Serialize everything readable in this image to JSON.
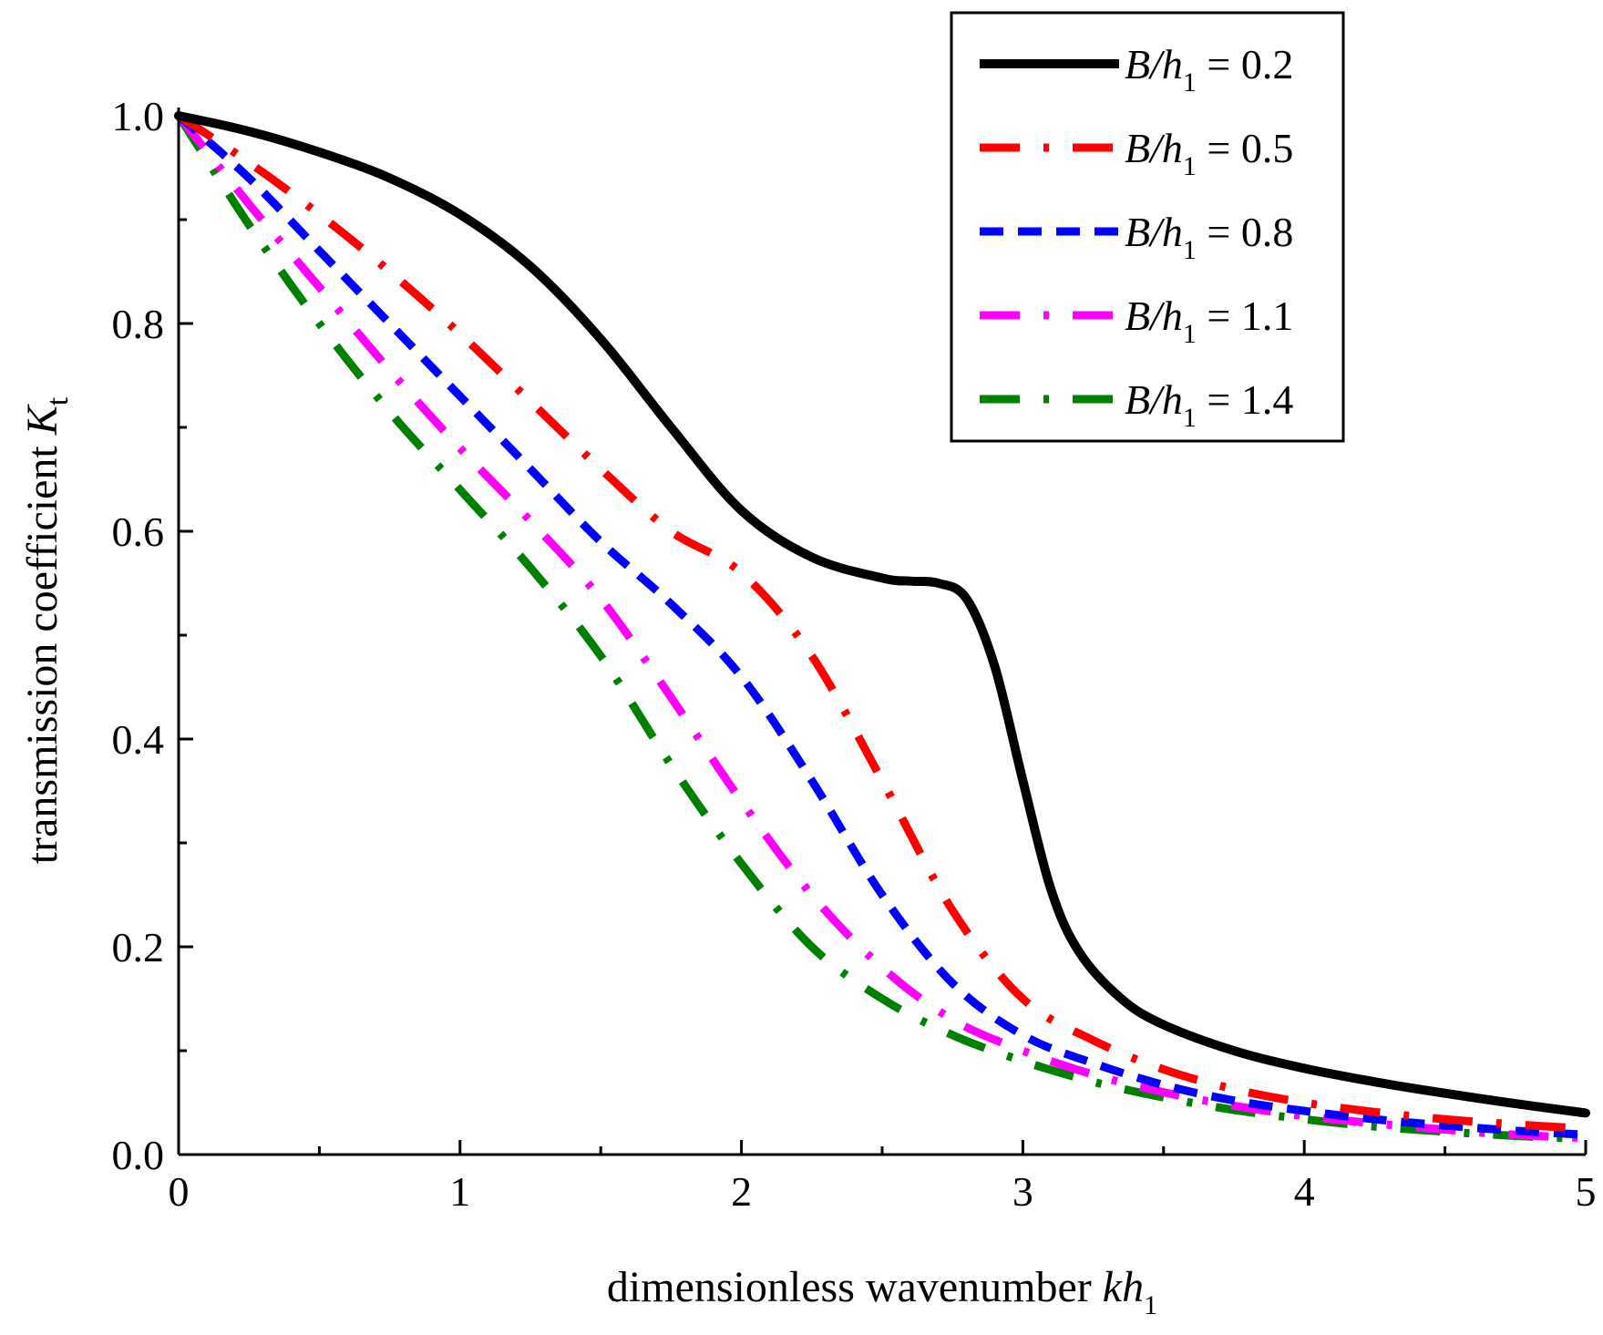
{
  "chart_data": {
    "type": "line",
    "xlabel": "dimensionless wavenumber kh",
    "xlabel_parts": {
      "main": "dimensionless wavenumber ",
      "var": "kh",
      "sub": "1"
    },
    "ylabel": "transmission coefficient K",
    "ylabel_parts": {
      "main": "transmission coefficient ",
      "var": "K",
      "sub": "t"
    },
    "xlim": [
      0,
      5
    ],
    "ylim": [
      0,
      1.0
    ],
    "x_ticks": [
      0,
      1,
      2,
      3,
      4,
      5
    ],
    "x_tick_labels": [
      "0",
      "1",
      "2",
      "3",
      "4",
      "5"
    ],
    "y_ticks": [
      0.0,
      0.2,
      0.4,
      0.6,
      0.8,
      1.0
    ],
    "y_tick_labels": [
      "0.0",
      "0.2",
      "0.4",
      "0.6",
      "0.8",
      "1.0"
    ],
    "grid": false,
    "legend_position": "top-right",
    "series": [
      {
        "name": "B/h1 = 0.2",
        "label": {
          "var": "B/h",
          "sub": "1",
          "rest": " = 0.2"
        },
        "color": "#000000",
        "style": "solid",
        "x": [
          0,
          0.25,
          0.5,
          0.75,
          1.0,
          1.25,
          1.5,
          1.75,
          2.0,
          2.25,
          2.5,
          2.6,
          2.7,
          2.8,
          2.9,
          3.0,
          3.1,
          3.2,
          3.35,
          3.5,
          3.75,
          4.0,
          4.25,
          4.5,
          4.75,
          5.0
        ],
        "y": [
          1.0,
          0.985,
          0.965,
          0.94,
          0.905,
          0.855,
          0.785,
          0.7,
          0.62,
          0.575,
          0.555,
          0.552,
          0.55,
          0.535,
          0.47,
          0.36,
          0.255,
          0.195,
          0.15,
          0.125,
          0.1,
          0.083,
          0.07,
          0.059,
          0.049,
          0.04
        ]
      },
      {
        "name": "B/h1 = 0.5",
        "label": {
          "var": "B/h",
          "sub": "1",
          "rest": " = 0.5"
        },
        "color": "#ff0000",
        "style": "dash-dot",
        "x": [
          0,
          0.25,
          0.5,
          0.75,
          1.0,
          1.25,
          1.5,
          1.75,
          2.0,
          2.25,
          2.5,
          2.75,
          3.0,
          3.25,
          3.5,
          3.75,
          4.0,
          4.25,
          4.5,
          4.75,
          5.0
        ],
        "y": [
          1.0,
          0.955,
          0.905,
          0.85,
          0.79,
          0.725,
          0.66,
          0.6,
          0.56,
          0.48,
          0.36,
          0.235,
          0.15,
          0.11,
          0.082,
          0.063,
          0.05,
          0.041,
          0.034,
          0.029,
          0.025
        ]
      },
      {
        "name": "B/h1 = 0.8",
        "label": {
          "var": "B/h",
          "sub": "1",
          "rest": " = 0.8"
        },
        "color": "#0000ff",
        "style": "short-dash",
        "x": [
          0,
          0.25,
          0.5,
          0.75,
          1.0,
          1.25,
          1.5,
          1.75,
          2.0,
          2.25,
          2.5,
          2.75,
          3.0,
          3.25,
          3.5,
          3.75,
          4.0,
          4.25,
          4.5,
          4.75,
          5.0
        ],
        "y": [
          1.0,
          0.94,
          0.87,
          0.8,
          0.73,
          0.66,
          0.59,
          0.53,
          0.46,
          0.36,
          0.25,
          0.165,
          0.115,
          0.088,
          0.067,
          0.052,
          0.042,
          0.034,
          0.028,
          0.023,
          0.019
        ]
      },
      {
        "name": "B/h1 = 1.1",
        "label": {
          "var": "B/h",
          "sub": "1",
          "rest": " = 1.1"
        },
        "color": "#ff00ff",
        "style": "dash-dot",
        "x": [
          0,
          0.25,
          0.5,
          0.75,
          1.0,
          1.25,
          1.5,
          1.75,
          2.0,
          2.25,
          2.5,
          2.75,
          3.0,
          3.25,
          3.5,
          3.75,
          4.0,
          4.25,
          4.5,
          4.75,
          5.0
        ],
        "y": [
          1.0,
          0.915,
          0.835,
          0.755,
          0.68,
          0.61,
          0.535,
          0.44,
          0.34,
          0.25,
          0.18,
          0.13,
          0.1,
          0.077,
          0.06,
          0.047,
          0.037,
          0.03,
          0.024,
          0.019,
          0.016
        ]
      },
      {
        "name": "B/h1 = 1.4",
        "label": {
          "var": "B/h",
          "sub": "1",
          "rest": " = 1.4"
        },
        "color": "#008000",
        "style": "dash-dot",
        "x": [
          0,
          0.25,
          0.5,
          0.75,
          1.0,
          1.25,
          1.5,
          1.75,
          2.0,
          2.25,
          2.5,
          2.75,
          3.0,
          3.25,
          3.5,
          3.75,
          4.0,
          4.25,
          4.5,
          4.75,
          5.0
        ],
        "y": [
          1.0,
          0.895,
          0.8,
          0.715,
          0.64,
          0.565,
          0.48,
          0.375,
          0.28,
          0.2,
          0.15,
          0.115,
          0.09,
          0.07,
          0.055,
          0.043,
          0.034,
          0.027,
          0.022,
          0.018,
          0.015
        ]
      }
    ]
  }
}
